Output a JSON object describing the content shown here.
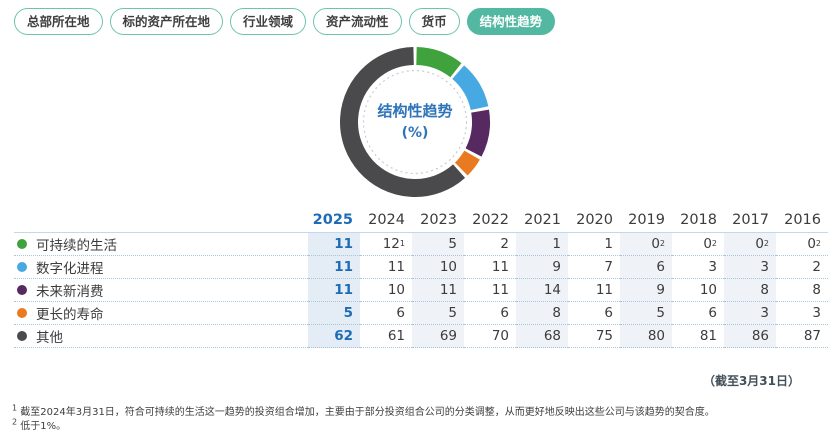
{
  "tabs": [
    {
      "label": "总部所在地",
      "selected": false
    },
    {
      "label": "标的资产所在地",
      "selected": false
    },
    {
      "label": "行业领域",
      "selected": false
    },
    {
      "label": "资产流动性",
      "selected": false
    },
    {
      "label": "货币",
      "selected": false
    },
    {
      "label": "结构性趋势",
      "selected": true
    }
  ],
  "colors": {
    "tab_border": "#6cc4af",
    "tab_selected_bg": "#52b8a1",
    "accent_blue": "#1e6cb5",
    "center_label_blue": "#2e74b8",
    "stripe_current": "#e4edf6",
    "stripe_alt": "#eff2f7",
    "header_line": "#c3d8e8",
    "dotted_line": "#aac4d8",
    "green": "#3fa23c",
    "blue": "#47a9e1",
    "purple": "#562a61",
    "orange": "#e87b22",
    "dark": "#4a4a4c"
  },
  "chart_data": {
    "type": "pie",
    "donut": true,
    "title": "结构性趋势 (%)",
    "center_label": "结构性趋势",
    "center_sublabel": "(%)",
    "start_angle_deg": -90,
    "clockwise": true,
    "legend_position": "table-row-dots",
    "segments": [
      {
        "label": "可持续的生活",
        "value": 11,
        "color": "#3fa23c"
      },
      {
        "label": "数字化进程",
        "value": 11,
        "color": "#47a9e1"
      },
      {
        "label": "未来新消费",
        "value": 11,
        "color": "#562a61"
      },
      {
        "label": "更长的寿命",
        "value": 5,
        "color": "#e87b22"
      },
      {
        "label": "其他",
        "value": 62,
        "color": "#4a4a4c"
      }
    ]
  },
  "table": {
    "years": [
      "2025",
      "2024",
      "2023",
      "2022",
      "2021",
      "2020",
      "2019",
      "2018",
      "2017",
      "2016"
    ],
    "highlight_year": "2025",
    "striped_years": [
      "2023",
      "2021",
      "2019",
      "2017"
    ],
    "rows": [
      {
        "label": "可持续的生活",
        "color": "#3fa23c",
        "values": [
          "11",
          "12^1",
          "5",
          "2",
          "1",
          "1",
          "0^2",
          "0^2",
          "0^2",
          "0^2"
        ]
      },
      {
        "label": "数字化进程",
        "color": "#47a9e1",
        "values": [
          "11",
          "11",
          "10",
          "11",
          "9",
          "7",
          "6",
          "3",
          "3",
          "2"
        ]
      },
      {
        "label": "未来新消费",
        "color": "#562a61",
        "values": [
          "11",
          "10",
          "11",
          "11",
          "14",
          "11",
          "9",
          "10",
          "8",
          "8"
        ]
      },
      {
        "label": "更长的寿命",
        "color": "#e87b22",
        "values": [
          "5",
          "6",
          "5",
          "6",
          "8",
          "6",
          "5",
          "6",
          "3",
          "3"
        ]
      },
      {
        "label": "其他",
        "color": "#4a4a4c",
        "values": [
          "62",
          "61",
          "69",
          "70",
          "68",
          "75",
          "80",
          "81",
          "86",
          "87"
        ]
      }
    ]
  },
  "as_of_note": "（截至3月31日）",
  "footnotes": [
    {
      "marker": "1",
      "text": "截至2024年3月31日，符合可持续的生活这一趋势的投资组合增加，主要由于部分投资组合公司的分类调整，从而更好地反映出这些公司与该趋势的契合度。"
    },
    {
      "marker": "2",
      "text": "低于1%。"
    }
  ]
}
